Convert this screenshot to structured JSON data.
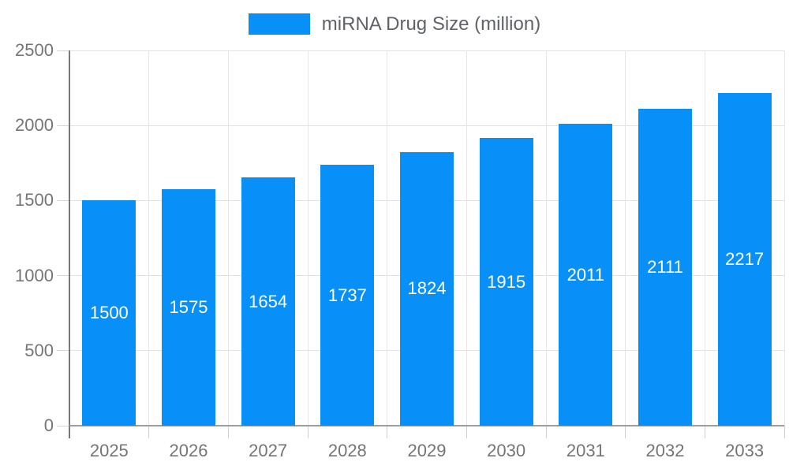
{
  "legend": {
    "label": "miRNA Drug Size (million)"
  },
  "colors": {
    "bar": "#0990f8",
    "bar_label_text": "#ffffff",
    "axis_label_text": "#757575",
    "legend_text": "#5f6368",
    "grid_line": "#e2e2e2",
    "y_axis_line": "#787878",
    "x_axis_line": "#9e9e9e"
  },
  "chart_data": {
    "type": "bar",
    "categories": [
      "2025",
      "2026",
      "2027",
      "2028",
      "2029",
      "2030",
      "2031",
      "2032",
      "2033"
    ],
    "values": [
      1500,
      1575,
      1654,
      1737,
      1824,
      1915,
      2011,
      2111,
      2217
    ],
    "series_name": "miRNA Drug Size (million)",
    "title": "",
    "xlabel": "",
    "ylabel": "",
    "ylim": [
      0,
      2500
    ],
    "yticks": [
      0,
      500,
      1000,
      1500,
      2000,
      2500
    ],
    "grid": true,
    "legend_position": "top",
    "bar_label_position": "inside-center",
    "bar_color": "#0990f8"
  }
}
